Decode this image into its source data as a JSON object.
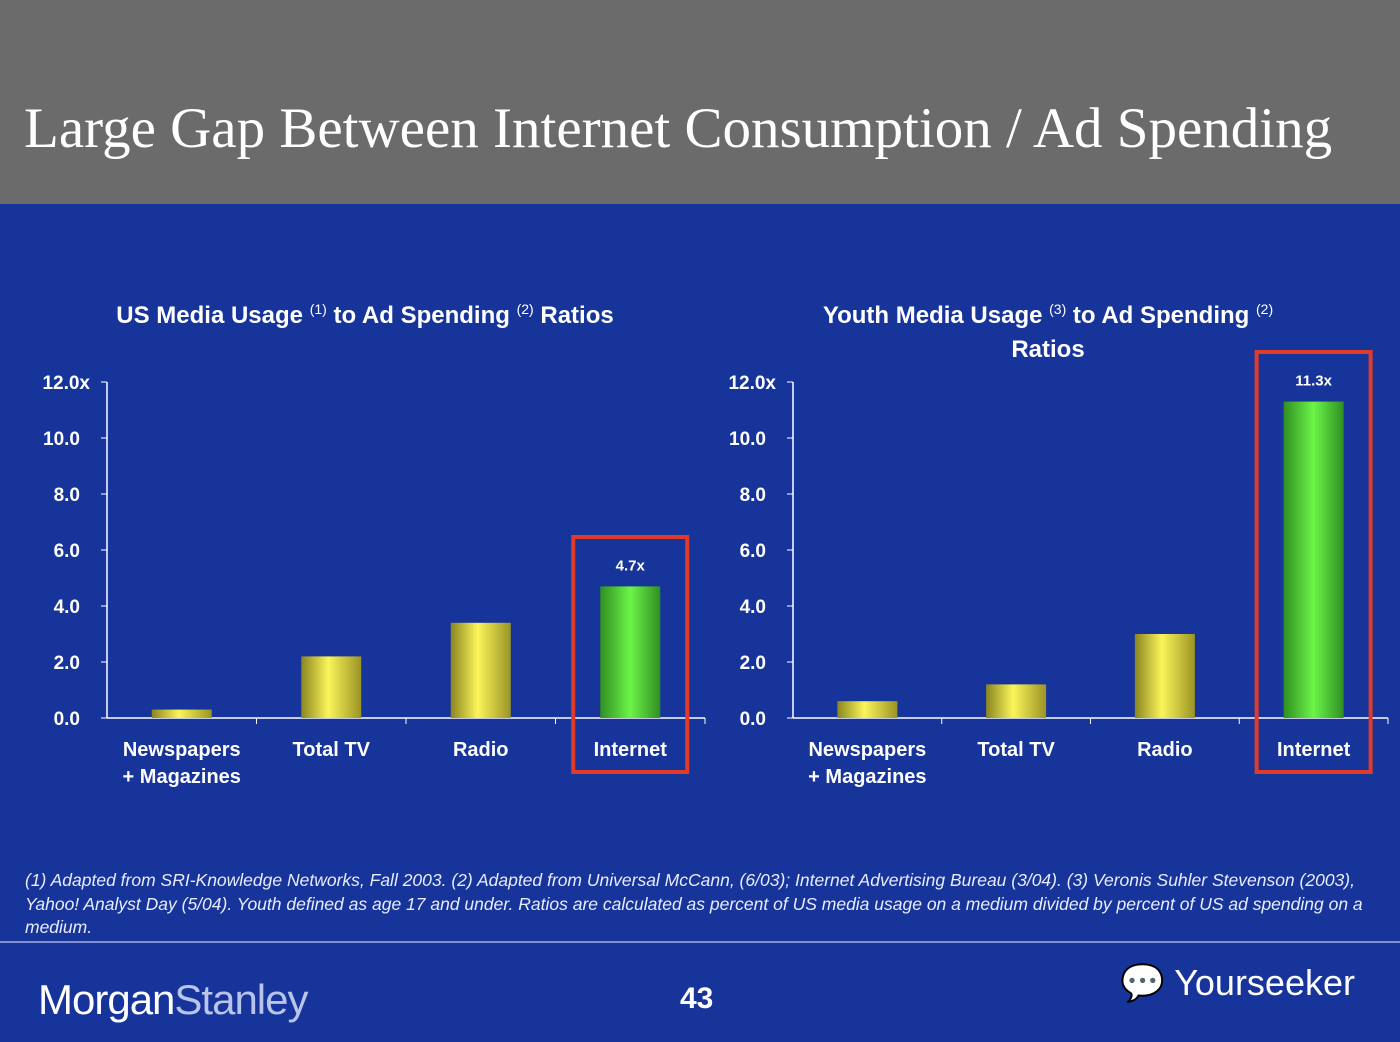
{
  "title": "Large Gap Between Internet Consumption / Ad Spending",
  "chart_data": [
    {
      "type": "bar",
      "title": {
        "p1": "US Media Usage ",
        "s1": "(1)",
        "p2": " to Ad Spending ",
        "s2": "(2)",
        "p3": " Ratios"
      },
      "categories": [
        "Newspapers\n+ Magazines",
        "Total TV",
        "Radio",
        "Internet"
      ],
      "values": [
        0.3,
        2.2,
        3.4,
        4.7
      ],
      "ylim": [
        0,
        12
      ],
      "yticks": [
        "0.0",
        "2.0",
        "4.0",
        "6.0",
        "8.0",
        "10.0",
        "12.0x"
      ],
      "data_labels": [
        "",
        "",
        "",
        "4.7x"
      ],
      "highlight": "Internet",
      "colors": {
        "bar": "#e8e43a",
        "highlight": "#4fe03a",
        "box": "#e03a2a"
      }
    },
    {
      "type": "bar",
      "title": {
        "p1": "Youth Media Usage ",
        "s1": "(3)",
        "p2": " to Ad Spending ",
        "s2": "(2)",
        "p3": "Ratios"
      },
      "categories": [
        "Newspapers\n+ Magazines",
        "Total TV",
        "Radio",
        "Internet"
      ],
      "values": [
        0.6,
        1.2,
        3.0,
        11.3
      ],
      "ylim": [
        0,
        12
      ],
      "yticks": [
        "0.0",
        "2.0",
        "4.0",
        "6.0",
        "8.0",
        "10.0",
        "12.0x"
      ],
      "data_labels": [
        "",
        "",
        "",
        "11.3x"
      ],
      "highlight": "Internet",
      "colors": {
        "bar": "#e8e43a",
        "highlight": "#4fe03a",
        "box": "#e03a2a"
      }
    }
  ],
  "footnote": "(1) Adapted from SRI-Knowledge Networks, Fall 2003.  (2) Adapted from Universal McCann, (6/03); Internet Advertising Bureau (3/04). (3) Veronis Suhler Stevenson (2003), Yahoo! Analyst Day (5/04).  Youth defined as age 17 and under.  Ratios are calculated as percent of US media usage on a medium divided by percent of US ad spending on a medium.",
  "footer": {
    "logo_a": "Morgan",
    "logo_b": "Stanley",
    "page": "43",
    "watermark": "Yourseeker",
    "watermark_icon": "wechat-icon"
  }
}
